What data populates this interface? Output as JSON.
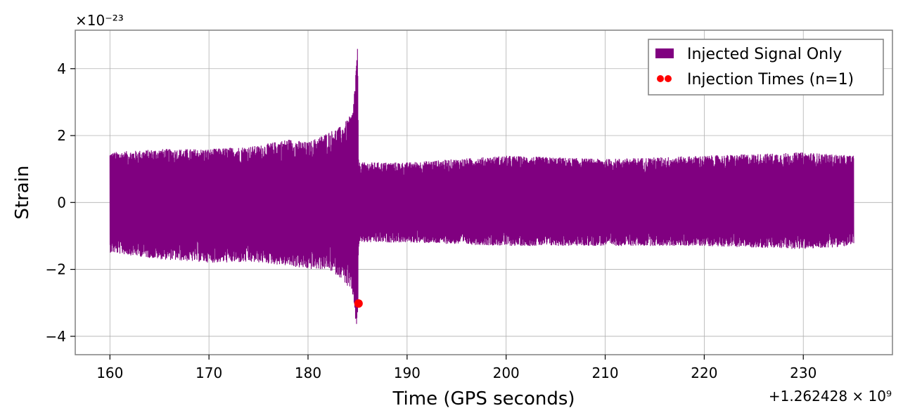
{
  "chart_data": {
    "type": "line",
    "title": "",
    "xlabel": "Time (GPS seconds)",
    "ylabel": "Strain",
    "x_offset_label": "+1.262428 × 10⁹",
    "y_scale_label": "×10⁻²³",
    "xlim": [
      156.5,
      239.0
    ],
    "ylim": [
      -4.55,
      5.15
    ],
    "xticks": [
      160,
      170,
      180,
      190,
      200,
      210,
      220,
      230
    ],
    "yticks": [
      -4,
      -2,
      0,
      2,
      4
    ],
    "ytick_labels": [
      "−4",
      "−2",
      "0",
      "2",
      "4"
    ],
    "grid": true,
    "legend_position": "top-right",
    "series": [
      {
        "name": "Injected Signal Only",
        "color": "#800080",
        "kind": "noise-envelope",
        "x_start": 160.0,
        "x_end": 235.1,
        "envelope_x": [
          160.0,
          165.0,
          170.0,
          175.0,
          178.0,
          180.0,
          182.0,
          183.5,
          184.5,
          185.0,
          185.1,
          185.2,
          190.0,
          200.0,
          210.0,
          220.0,
          230.0,
          235.1
        ],
        "envelope_upper": [
          1.5,
          1.6,
          1.6,
          1.7,
          1.9,
          1.8,
          2.1,
          2.3,
          2.7,
          4.7,
          1.3,
          1.2,
          1.2,
          1.4,
          1.3,
          1.4,
          1.5,
          1.4
        ],
        "envelope_lower": [
          -1.5,
          -1.7,
          -1.8,
          -1.8,
          -1.9,
          -2.0,
          -2.0,
          -2.3,
          -2.8,
          -4.1,
          -1.3,
          -1.2,
          -1.2,
          -1.3,
          -1.3,
          -1.3,
          -1.4,
          -1.3
        ]
      },
      {
        "name": "Injection Times (n=1)",
        "color": "#ff0000",
        "kind": "scatter",
        "points": [
          {
            "x": 185.1,
            "y": -3.02
          }
        ]
      }
    ]
  }
}
